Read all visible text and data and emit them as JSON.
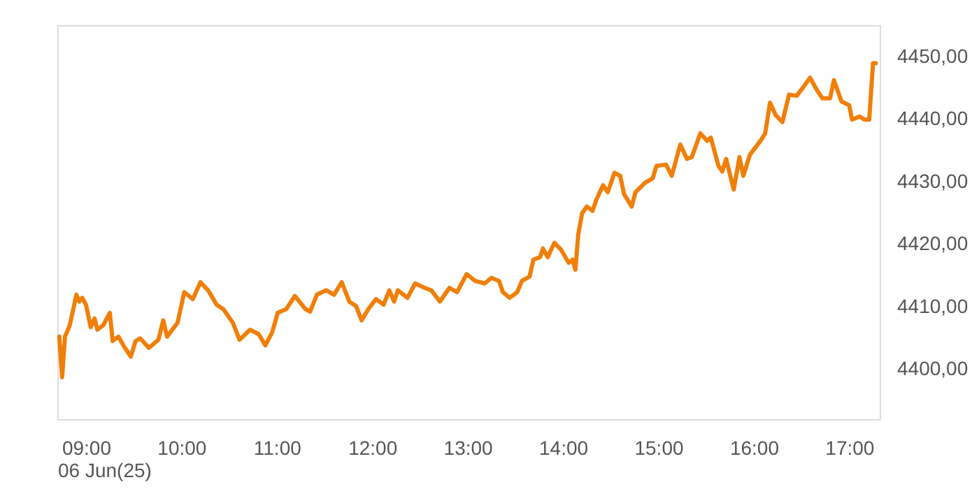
{
  "chart_data": {
    "type": "line",
    "xlabel": "06 Jun(25)",
    "x": [
      8.72,
      8.75,
      8.78,
      8.83,
      8.9,
      8.93,
      8.96,
      9.0,
      9.05,
      9.09,
      9.12,
      9.18,
      9.25,
      9.28,
      9.34,
      9.4,
      9.47,
      9.52,
      9.57,
      9.66,
      9.76,
      9.81,
      9.85,
      9.96,
      10.03,
      10.12,
      10.2,
      10.28,
      10.37,
      10.44,
      10.54,
      10.61,
      10.72,
      10.81,
      10.88,
      10.95,
      11.01,
      11.1,
      11.19,
      11.3,
      11.35,
      11.42,
      11.52,
      11.6,
      11.68,
      11.76,
      11.83,
      11.89,
      11.96,
      12.04,
      12.12,
      12.18,
      12.23,
      12.27,
      12.37,
      12.45,
      12.55,
      12.62,
      12.71,
      12.81,
      12.89,
      12.99,
      13.08,
      13.18,
      13.25,
      13.33,
      13.37,
      13.44,
      13.52,
      13.57,
      13.65,
      13.69,
      13.76,
      13.79,
      13.84,
      13.91,
      13.98,
      14.06,
      14.1,
      14.13,
      14.16,
      14.2,
      14.25,
      14.31,
      14.35,
      14.42,
      14.47,
      14.54,
      14.6,
      14.64,
      14.72,
      14.76,
      14.86,
      14.94,
      14.98,
      15.08,
      15.14,
      15.23,
      15.3,
      15.35,
      15.44,
      15.51,
      15.55,
      15.63,
      15.67,
      15.71,
      15.79,
      15.85,
      15.89,
      15.96,
      16.07,
      16.12,
      16.17,
      16.23,
      16.3,
      16.37,
      16.45,
      16.52,
      16.59,
      16.67,
      16.72,
      16.8,
      16.84,
      16.92,
      17.0,
      17.03,
      17.11,
      17.16,
      17.21,
      17.25,
      17.28
    ],
    "series": [
      {
        "color": "#f07f09",
        "values": [
          4405.2,
          4398.7,
          4405.2,
          4407.0,
          4411.9,
          4410.8,
          4411.4,
          4410.3,
          4406.7,
          4408.1,
          4406.3,
          4407.0,
          4409.0,
          4404.5,
          4405.2,
          4403.6,
          4402.0,
          4404.5,
          4404.9,
          4403.4,
          4404.7,
          4407.8,
          4405.2,
          4407.4,
          4412.3,
          4411.2,
          4413.9,
          4412.6,
          4410.3,
          4409.6,
          4407.4,
          4404.7,
          4406.3,
          4405.6,
          4403.8,
          4405.8,
          4409.0,
          4409.6,
          4411.7,
          4409.6,
          4409.2,
          4411.9,
          4412.6,
          4411.9,
          4413.9,
          4410.8,
          4410.1,
          4407.8,
          4409.6,
          4411.2,
          4410.3,
          4412.6,
          4410.8,
          4412.6,
          4411.4,
          4413.7,
          4413.0,
          4412.6,
          4410.8,
          4413.0,
          4412.3,
          4415.2,
          4414.1,
          4413.7,
          4414.6,
          4414.1,
          4412.3,
          4411.4,
          4412.3,
          4414.1,
          4414.8,
          4417.5,
          4417.9,
          4419.3,
          4417.9,
          4420.2,
          4419.1,
          4417.0,
          4417.5,
          4415.9,
          4421.5,
          4424.9,
          4426.0,
          4425.3,
          4427.1,
          4429.4,
          4428.3,
          4431.4,
          4430.9,
          4428.0,
          4426.0,
          4428.3,
          4429.8,
          4430.5,
          4432.5,
          4432.7,
          4430.9,
          4435.9,
          4433.6,
          4433.9,
          4437.7,
          4436.5,
          4437.0,
          4432.5,
          4431.6,
          4433.6,
          4428.7,
          4433.9,
          4430.9,
          4434.3,
          4436.5,
          4437.7,
          4442.6,
          4440.6,
          4439.5,
          4443.9,
          4443.7,
          4445.1,
          4446.6,
          4444.4,
          4443.3,
          4443.3,
          4446.2,
          4442.8,
          4442.2,
          4439.9,
          4440.4,
          4439.9,
          4439.9,
          4448.9,
          4448.9
        ]
      }
    ],
    "xlim": [
      8.7,
      17.32
    ],
    "ylim": [
      4392,
      4455
    ],
    "xticks": [
      {
        "value": 9,
        "label": "09:00"
      },
      {
        "value": 10,
        "label": "10:00"
      },
      {
        "value": 11,
        "label": "11:00"
      },
      {
        "value": 12,
        "label": "12:00"
      },
      {
        "value": 13,
        "label": "13:00"
      },
      {
        "value": 14,
        "label": "14:00"
      },
      {
        "value": 15,
        "label": "15:00"
      },
      {
        "value": 16,
        "label": "16:00"
      },
      {
        "value": 17,
        "label": "17:00"
      }
    ],
    "yticks": [
      {
        "value": 4400,
        "label": "4400,00"
      },
      {
        "value": 4410,
        "label": "4410,00"
      },
      {
        "value": 4420,
        "label": "4420,00"
      },
      {
        "value": 4430,
        "label": "4430,00"
      },
      {
        "value": 4440,
        "label": "4440,00"
      },
      {
        "value": 4450,
        "label": "4450,00"
      }
    ],
    "grid": false,
    "line_style": "solid",
    "marker": "none"
  }
}
